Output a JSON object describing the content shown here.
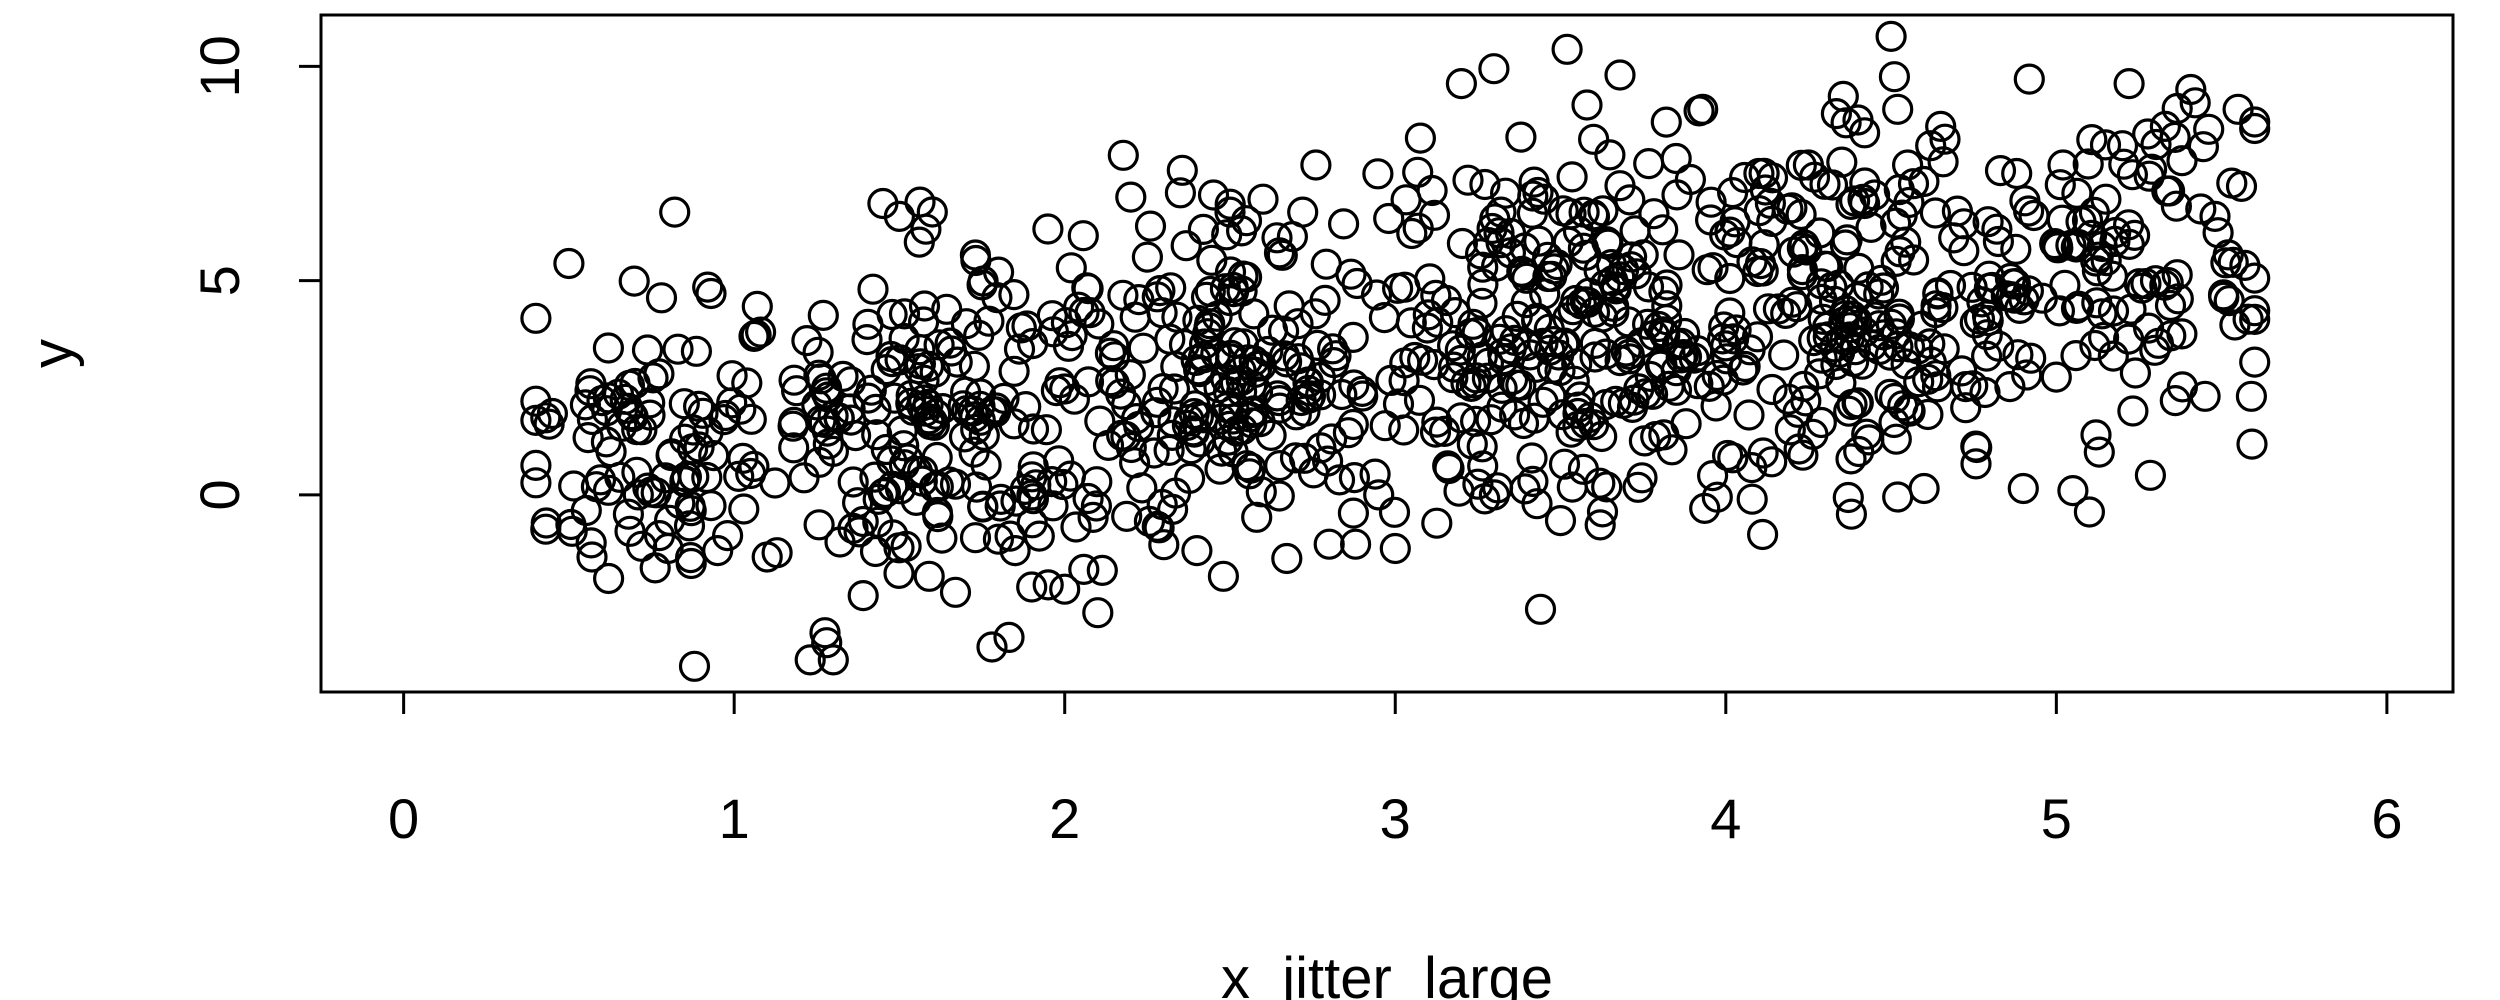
{
  "chart_data": {
    "type": "scatter",
    "title": "",
    "xlabel": "x_jitter_large",
    "ylabel": "y",
    "xlim": [
      -0.25,
      6.2
    ],
    "ylim": [
      -4.6,
      11.2
    ],
    "x_ticks": [
      0,
      1,
      2,
      3,
      4,
      5,
      6
    ],
    "x_tick_labels": [
      "0",
      "1",
      "2",
      "3",
      "4",
      "5",
      "6"
    ],
    "y_ticks": [
      0,
      5,
      10
    ],
    "y_tick_labels": [
      "0",
      "5",
      "10"
    ],
    "grid": false,
    "legend": "none",
    "marker": "open-circle",
    "point_color": "#000000",
    "n_points": 1000,
    "x_range_observed": [
      0.4,
      5.6
    ],
    "y_range_observed": [
      -4.0,
      10.7
    ],
    "trend": "positive",
    "clusters": [
      {
        "x_center": 0.7,
        "y_center": 1.2,
        "count": 70,
        "x_sd": 0.18,
        "y_sd": 1.5
      },
      {
        "x_center": 1.6,
        "y_center": 1.7,
        "count": 170,
        "x_sd": 0.28,
        "y_sd": 1.9
      },
      {
        "x_center": 2.5,
        "y_center": 2.6,
        "count": 210,
        "x_sd": 0.3,
        "y_sd": 1.9
      },
      {
        "x_center": 3.5,
        "y_center": 3.9,
        "count": 240,
        "x_sd": 0.3,
        "y_sd": 2.0
      },
      {
        "x_center": 4.4,
        "y_center": 4.4,
        "count": 210,
        "x_sd": 0.3,
        "y_sd": 1.9
      },
      {
        "x_center": 5.2,
        "y_center": 5.3,
        "count": 100,
        "x_sd": 0.22,
        "y_sd": 1.8
      }
    ],
    "points": [
      [
        0.43,
        1.8
      ],
      [
        0.45,
        1.9
      ],
      [
        0.44,
        1.65
      ],
      [
        0.43,
        -0.8
      ],
      [
        0.5,
        5.4
      ],
      [
        0.51,
        -0.85
      ],
      [
        0.55,
        2.1
      ],
      [
        0.57,
        -1.45
      ],
      [
        0.6,
        2.2
      ],
      [
        0.62,
        -1.95
      ],
      [
        0.65,
        2.35
      ],
      [
        0.66,
        1.6
      ],
      [
        0.68,
        -0.45
      ],
      [
        0.7,
        2.6
      ],
      [
        0.71,
        0.0
      ],
      [
        0.72,
        -1.2
      ],
      [
        0.78,
        4.6
      ],
      [
        0.8,
        -1.25
      ],
      [
        0.82,
        6.6
      ],
      [
        0.83,
        3.4
      ],
      [
        0.85,
        1.3
      ],
      [
        0.87,
        -1.6
      ],
      [
        0.88,
        -4.0
      ],
      [
        0.92,
        4.85
      ],
      [
        0.93,
        4.7
      ],
      [
        0.93,
        -0.25
      ],
      [
        0.95,
        -1.3
      ],
      [
        0.98,
        -0.95
      ],
      [
        1.02,
        2.0
      ],
      [
        1.05,
        0.5
      ],
      [
        1.06,
        3.7
      ],
      [
        1.07,
        4.4
      ],
      [
        1.08,
        3.8
      ],
      [
        1.1,
        -1.45
      ],
      [
        1.13,
        -1.35
      ],
      [
        1.18,
        1.1
      ],
      [
        1.22,
        3.6
      ],
      [
        1.23,
        -3.85
      ],
      [
        1.25,
        2.1
      ],
      [
        1.28,
        -3.45
      ],
      [
        1.3,
        -3.85
      ],
      [
        1.32,
        -1.1
      ],
      [
        1.36,
        0.3
      ],
      [
        1.42,
        4.8
      ],
      [
        1.45,
        6.8
      ],
      [
        1.48,
        0.2
      ],
      [
        1.5,
        6.5
      ],
      [
        1.52,
        -1.2
      ],
      [
        1.56,
        5.9
      ],
      [
        1.58,
        6.2
      ],
      [
        1.59,
        -1.9
      ],
      [
        1.62,
        3.5
      ],
      [
        1.65,
        0.3
      ],
      [
        1.7,
        2.4
      ],
      [
        1.73,
        -1.0
      ],
      [
        1.75,
        4.9
      ],
      [
        1.78,
        -3.55
      ],
      [
        1.8,
        5.2
      ],
      [
        1.85,
        -1.3
      ],
      [
        1.9,
        -2.15
      ],
      [
        1.95,
        -2.1
      ],
      [
        2.0,
        -2.2
      ],
      [
        2.02,
        5.3
      ],
      [
        2.1,
        -2.75
      ],
      [
        2.15,
        2.6
      ],
      [
        2.2,
        6.95
      ],
      [
        2.25,
        5.55
      ],
      [
        2.35,
        7.05
      ],
      [
        2.4,
        -1.3
      ],
      [
        2.45,
        7.0
      ],
      [
        2.48,
        -1.9
      ],
      [
        2.5,
        6.6
      ],
      [
        2.55,
        6.4
      ],
      [
        2.6,
        6.9
      ],
      [
        2.72,
        6.6
      ],
      [
        2.76,
        7.7
      ],
      [
        2.8,
        -1.15
      ],
      [
        2.88,
        -1.15
      ],
      [
        2.95,
        0.0
      ],
      [
        2.98,
        6.45
      ],
      [
        3.0,
        -1.25
      ],
      [
        3.05,
        6.1
      ],
      [
        3.1,
        4.2
      ],
      [
        3.2,
        9.6
      ],
      [
        3.25,
        0.25
      ],
      [
        3.3,
        0.0
      ],
      [
        3.32,
        6.6
      ],
      [
        3.38,
        8.35
      ],
      [
        3.42,
        7.3
      ],
      [
        3.45,
        6.9
      ],
      [
        3.5,
        -0.6
      ],
      [
        3.52,
        10.4
      ],
      [
        3.58,
        9.1
      ],
      [
        3.6,
        8.3
      ],
      [
        3.62,
        -0.7
      ],
      [
        3.68,
        9.8
      ],
      [
        3.75,
        5.6
      ],
      [
        3.82,
        8.7
      ],
      [
        3.85,
        7.85
      ],
      [
        3.93,
        9.0
      ],
      [
        3.96,
        0.45
      ],
      [
        4.08,
        -0.1
      ],
      [
        4.1,
        7.5
      ],
      [
        4.2,
        6.7
      ],
      [
        4.25,
        7.7
      ],
      [
        4.3,
        7.25
      ],
      [
        4.38,
        -0.45
      ],
      [
        4.4,
        8.75
      ],
      [
        4.42,
        8.45
      ],
      [
        4.45,
        7.0
      ],
      [
        4.5,
        10.7
      ],
      [
        4.52,
        9.0
      ],
      [
        4.52,
        -0.05
      ],
      [
        4.55,
        7.7
      ],
      [
        4.6,
        0.15
      ],
      [
        4.62,
        8.15
      ],
      [
        4.65,
        8.6
      ],
      [
        4.72,
        5.7
      ],
      [
        4.82,
        6.2
      ],
      [
        4.88,
        7.5
      ],
      [
        4.9,
        0.15
      ],
      [
        5.0,
        2.75
      ],
      [
        5.02,
        7.7
      ],
      [
        5.05,
        0.1
      ],
      [
        5.1,
        -0.4
      ],
      [
        5.12,
        1.4
      ],
      [
        5.13,
        1.0
      ],
      [
        5.15,
        6.9
      ],
      [
        5.2,
        8.15
      ],
      [
        5.22,
        9.6
      ],
      [
        5.3,
        5.0
      ],
      [
        5.33,
        8.6
      ],
      [
        5.36,
        2.2
      ],
      [
        5.38,
        7.8
      ],
      [
        5.42,
        9.15
      ],
      [
        5.45,
        2.3
      ],
      [
        5.48,
        6.5
      ],
      [
        5.52,
        5.6
      ],
      [
        5.55,
        9.0
      ],
      [
        5.56,
        7.2
      ],
      [
        5.58,
        4.1
      ],
      [
        5.59,
        2.3
      ],
      [
        5.6,
        3.1
      ]
    ]
  }
}
